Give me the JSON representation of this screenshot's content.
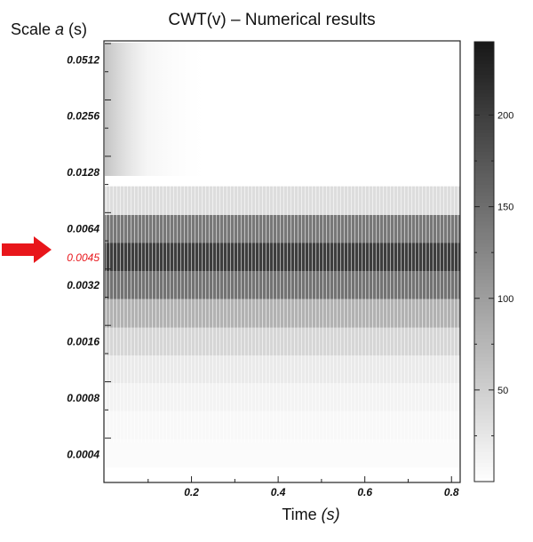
{
  "chart_data": {
    "type": "heatmap",
    "title": "CWT(v) – Numerical results",
    "ylabel_prefix": "Scale ",
    "ylabel_var": "a",
    "ylabel_unit": " (s)",
    "xlabel_prefix": "Time ",
    "xlabel_unit": "(s)",
    "xlim": [
      0,
      0.82
    ],
    "x_ticks": [
      "0.2",
      "0.4",
      "0.6",
      "0.8"
    ],
    "y_scale": "log2",
    "y_range": [
      0.000283,
      0.0646
    ],
    "y_ticks": [
      "0.0512",
      "0.0256",
      "0.0128",
      "0.0064",
      "0.0045",
      "0.0032",
      "0.0016",
      "0.0008",
      "0.0004"
    ],
    "highlighted_tick": "0.0045",
    "highlight_color": "#e8161b",
    "colorbar": {
      "range": [
        0,
        240
      ],
      "ticks": [
        "50",
        "100",
        "150",
        "200"
      ]
    },
    "bands": [
      {
        "scale_low": 0.00034,
        "scale_high": 0.00048,
        "value": 4
      },
      {
        "scale_low": 0.00048,
        "scale_high": 0.00068,
        "value": 7
      },
      {
        "scale_low": 0.00068,
        "scale_high": 0.00096,
        "value": 12
      },
      {
        "scale_low": 0.00096,
        "scale_high": 0.00135,
        "value": 22
      },
      {
        "scale_low": 0.00135,
        "scale_high": 0.0019,
        "value": 42
      },
      {
        "scale_low": 0.0019,
        "scale_high": 0.0027,
        "value": 80
      },
      {
        "scale_low": 0.0027,
        "scale_high": 0.0038,
        "value": 145
      },
      {
        "scale_low": 0.0038,
        "scale_high": 0.0054,
        "value": 200
      },
      {
        "scale_low": 0.0054,
        "scale_high": 0.0076,
        "value": 140
      },
      {
        "scale_low": 0.0076,
        "scale_high": 0.0108,
        "value": 35
      }
    ]
  }
}
